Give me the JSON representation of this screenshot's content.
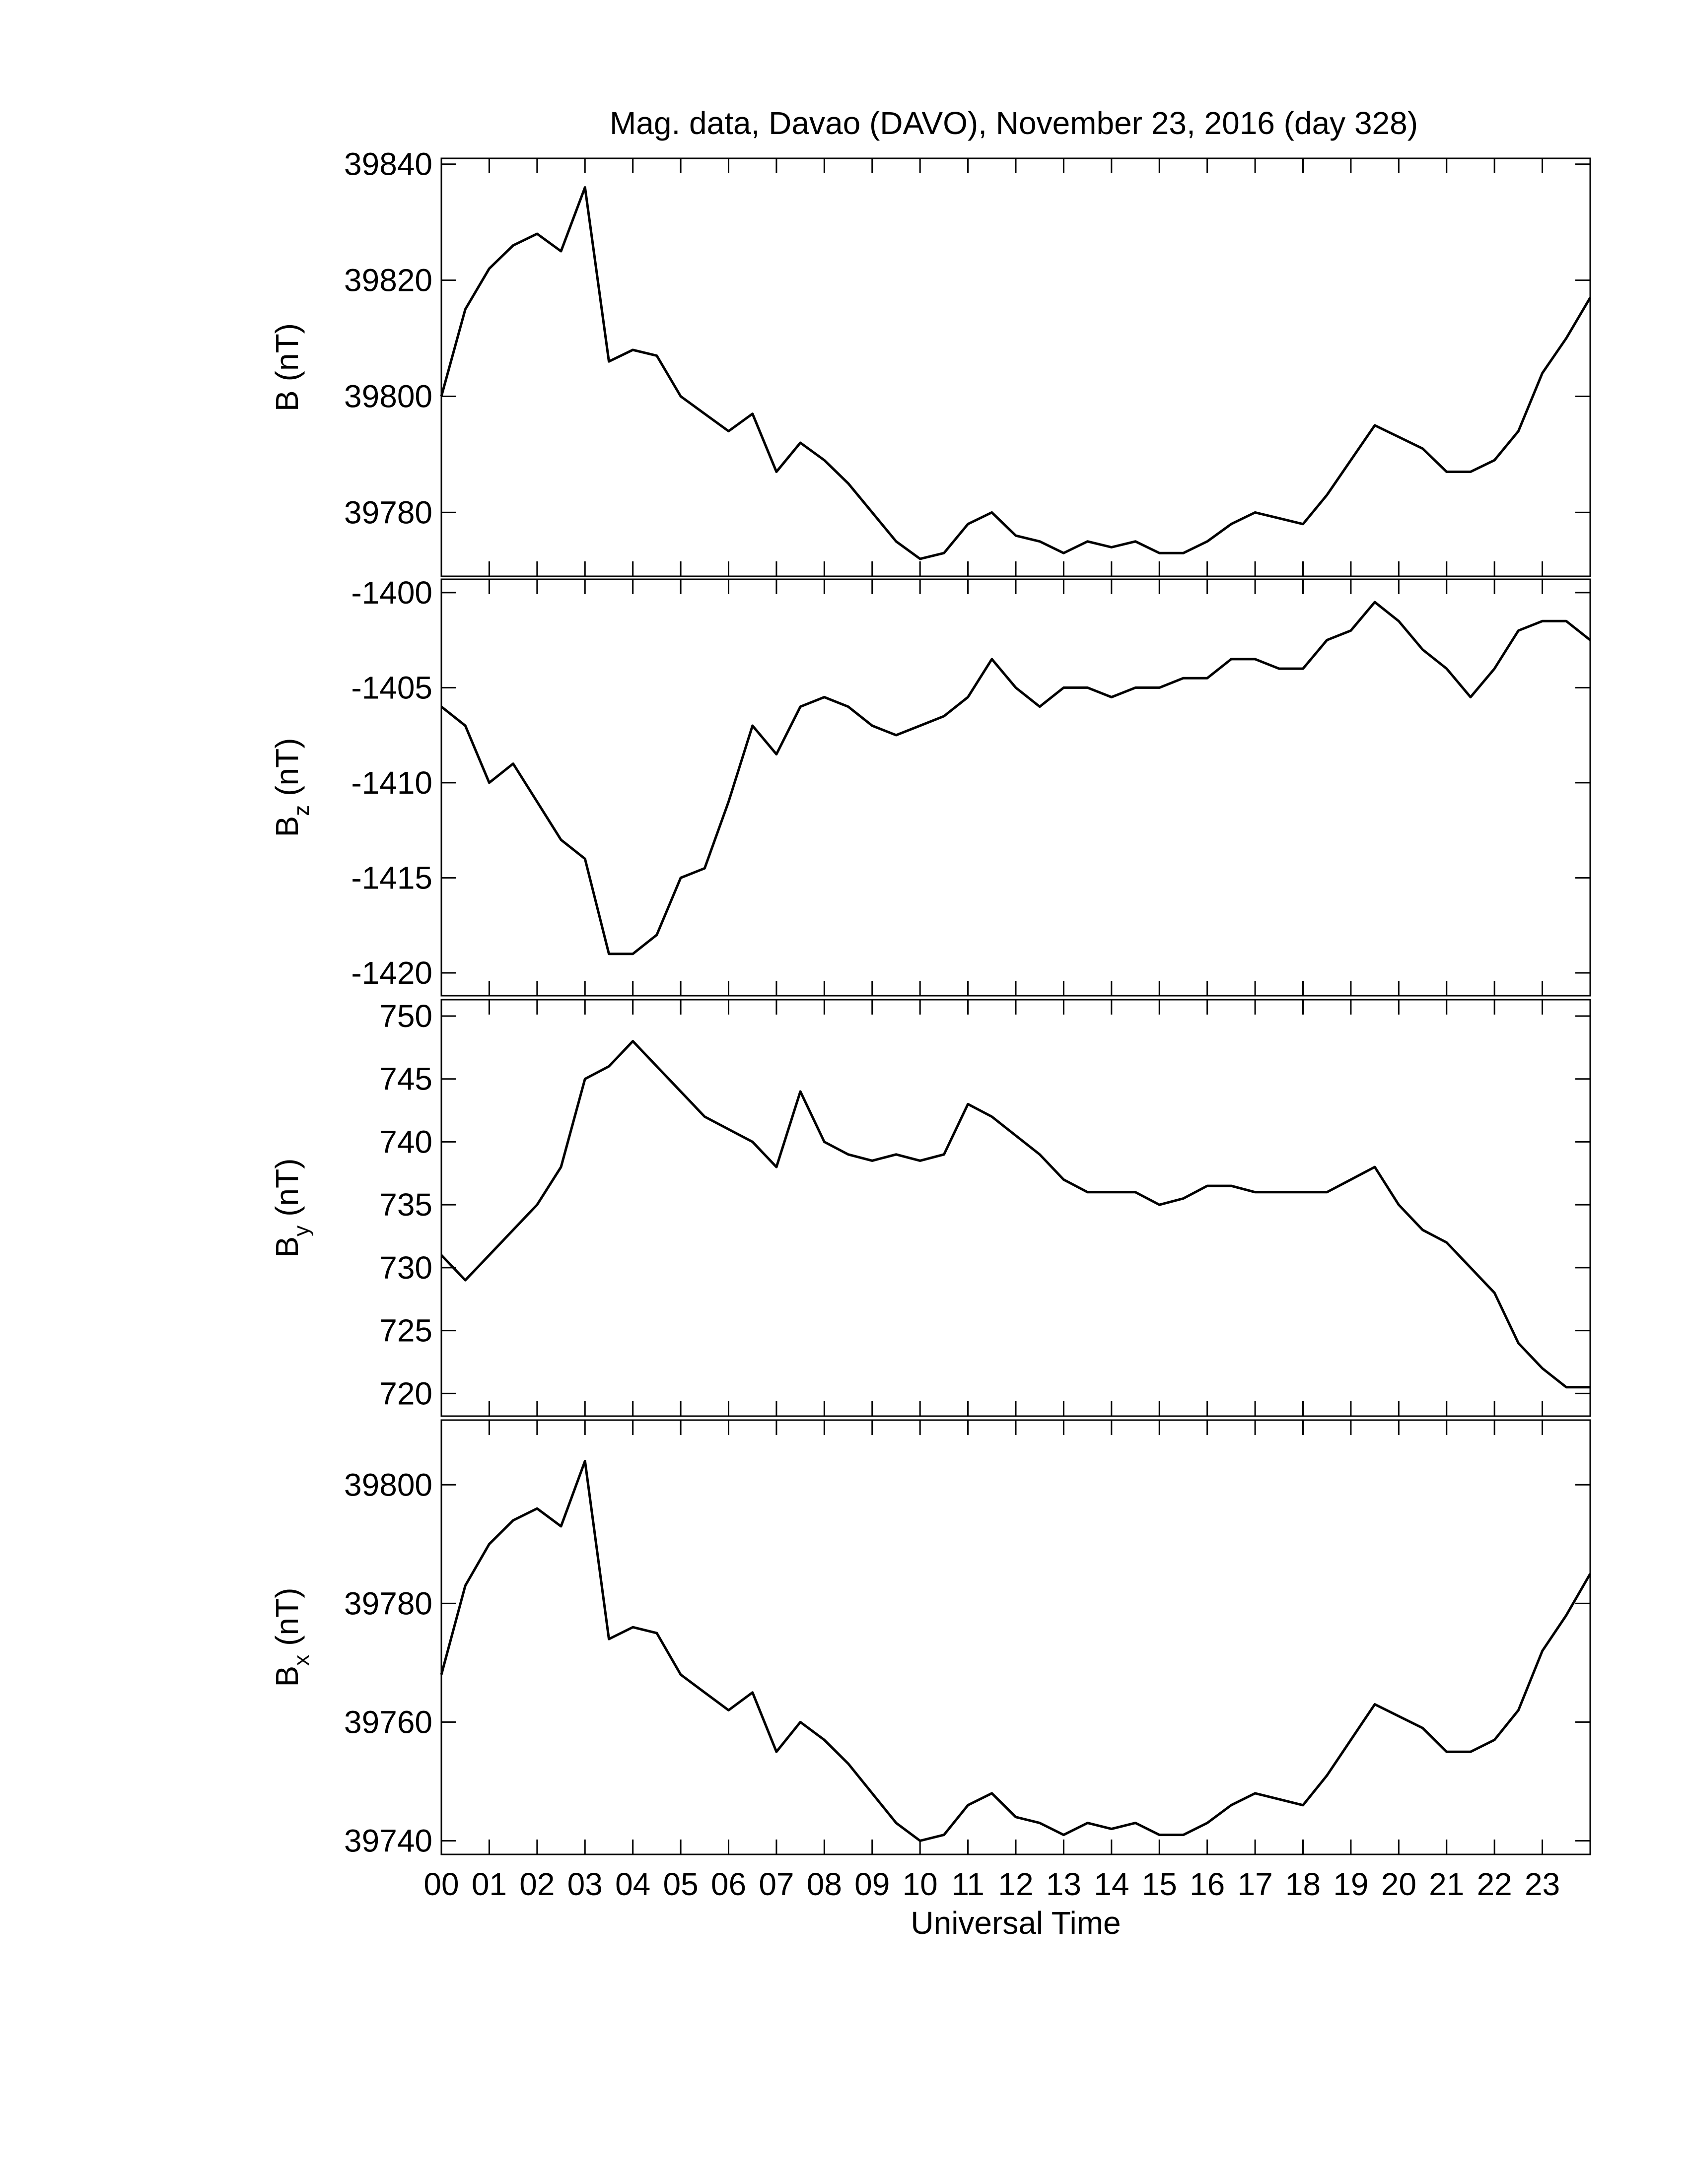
{
  "chart_data": [
    {
      "type": "line",
      "title": "Mag. data, Davao (DAVO), November 23, 2016 (day 328)",
      "ylabel": "B",
      "ylabel_unit": "(nT)",
      "color": "#000000",
      "xlim": [
        0,
        24
      ],
      "x": [
        0,
        0.5,
        1,
        1.5,
        2,
        2.5,
        3,
        3.5,
        4,
        4.5,
        5,
        5.5,
        6,
        6.5,
        7,
        7.5,
        8,
        8.5,
        9,
        9.5,
        10,
        10.5,
        11,
        11.5,
        12,
        12.5,
        13,
        13.5,
        14,
        14.5,
        15,
        15.5,
        16,
        16.5,
        17,
        17.5,
        18,
        18.5,
        19,
        19.5,
        20,
        20.5,
        21,
        21.5,
        22,
        22.5,
        23,
        23.5,
        24
      ],
      "values": [
        39800,
        39815,
        39822,
        39826,
        39828,
        39825,
        39836,
        39806,
        39808,
        39807,
        39800,
        39797,
        39794,
        39797,
        39787,
        39792,
        39789,
        39785,
        39780,
        39775,
        39772,
        39773,
        39778,
        39780,
        39776,
        39775,
        39773,
        39775,
        39774,
        39775,
        39773,
        39773,
        39775,
        39778,
        39780,
        39779,
        39778,
        39783,
        39789,
        39795,
        39793,
        39791,
        39787,
        39787,
        39789,
        39794,
        39804,
        39810,
        39817
      ],
      "ylim": [
        39769,
        39841
      ],
      "yticks": [
        39780,
        39800,
        39820,
        39840
      ]
    },
    {
      "type": "line",
      "ylabel": "B",
      "ylabel_sub": "z",
      "ylabel_unit": "(nT)",
      "color": "#000000",
      "xlim": [
        0,
        24
      ],
      "x": [
        0,
        0.5,
        1,
        1.5,
        2,
        2.5,
        3,
        3.5,
        4,
        4.5,
        5,
        5.5,
        6,
        6.5,
        7,
        7.5,
        8,
        8.5,
        9,
        9.5,
        10,
        10.5,
        11,
        11.5,
        12,
        12.5,
        13,
        13.5,
        14,
        14.5,
        15,
        15.5,
        16,
        16.5,
        17,
        17.5,
        18,
        18.5,
        19,
        19.5,
        20,
        20.5,
        21,
        21.5,
        22,
        22.5,
        23,
        23.5,
        24
      ],
      "values": [
        -1406,
        -1407,
        -1410,
        -1409,
        -1411,
        -1413,
        -1414,
        -1419,
        -1419,
        -1418,
        -1415,
        -1414.5,
        -1411,
        -1407,
        -1408.5,
        -1406,
        -1405.5,
        -1406,
        -1407,
        -1407.5,
        -1407,
        -1406.5,
        -1405.5,
        -1403.5,
        -1405,
        -1406,
        -1405,
        -1405,
        -1405.5,
        -1405,
        -1405,
        -1404.5,
        -1404.5,
        -1403.5,
        -1403.5,
        -1404,
        -1404,
        -1402.5,
        -1402,
        -1400.5,
        -1401.5,
        -1403,
        -1404,
        -1405.5,
        -1404,
        -1402,
        -1401.5,
        -1401.5,
        -1402.5
      ],
      "ylim": [
        -1421.2,
        -1399.3
      ],
      "yticks": [
        -1420,
        -1415,
        -1410,
        -1405,
        -1400
      ]
    },
    {
      "type": "line",
      "ylabel": "B",
      "ylabel_sub": "y",
      "ylabel_unit": "(nT)",
      "color": "#000000",
      "xlim": [
        0,
        24
      ],
      "x": [
        0,
        0.5,
        1,
        1.5,
        2,
        2.5,
        3,
        3.5,
        4,
        4.5,
        5,
        5.5,
        6,
        6.5,
        7,
        7.5,
        8,
        8.5,
        9,
        9.5,
        10,
        10.5,
        11,
        11.5,
        12,
        12.5,
        13,
        13.5,
        14,
        14.5,
        15,
        15.5,
        16,
        16.5,
        17,
        17.5,
        18,
        18.5,
        19,
        19.5,
        20,
        20.5,
        21,
        21.5,
        22,
        22.5,
        23,
        23.5,
        24
      ],
      "values": [
        731,
        729,
        731,
        733,
        735,
        738,
        745,
        746,
        748,
        746,
        744,
        742,
        741,
        740,
        738,
        744,
        740,
        739,
        738.5,
        739,
        738.5,
        739,
        743,
        742,
        740.5,
        739,
        737,
        736,
        736,
        736,
        735,
        735.5,
        736.5,
        736.5,
        736,
        736,
        736,
        736,
        737,
        738,
        735,
        733,
        732,
        730,
        728,
        724,
        722,
        720.5,
        720.5
      ],
      "ylim": [
        718.2,
        751.3
      ],
      "yticks": [
        720,
        725,
        730,
        735,
        740,
        745,
        750
      ]
    },
    {
      "type": "line",
      "ylabel": "B",
      "ylabel_sub": "x",
      "ylabel_unit": "(nT)",
      "color": "#000000",
      "xlabel": "Universal Time",
      "xlim": [
        0,
        24
      ],
      "x": [
        0,
        0.5,
        1,
        1.5,
        2,
        2.5,
        3,
        3.5,
        4,
        4.5,
        5,
        5.5,
        6,
        6.5,
        7,
        7.5,
        8,
        8.5,
        9,
        9.5,
        10,
        10.5,
        11,
        11.5,
        12,
        12.5,
        13,
        13.5,
        14,
        14.5,
        15,
        15.5,
        16,
        16.5,
        17,
        17.5,
        18,
        18.5,
        19,
        19.5,
        20,
        20.5,
        21,
        21.5,
        22,
        22.5,
        23,
        23.5,
        24
      ],
      "values": [
        39768,
        39783,
        39790,
        39794,
        39796,
        39793,
        39804,
        39774,
        39776,
        39775,
        39768,
        39765,
        39762,
        39765,
        39755,
        39760,
        39757,
        39753,
        39748,
        39743,
        39740,
        39741,
        39746,
        39748,
        39744,
        39743,
        39741,
        39743,
        39742,
        39743,
        39741,
        39741,
        39743,
        39746,
        39748,
        39747,
        39746,
        39751,
        39757,
        39763,
        39761,
        39759,
        39755,
        39755,
        39757,
        39762,
        39772,
        39778,
        39785
      ],
      "ylim": [
        39737.7,
        39810.9
      ],
      "yticks": [
        39740,
        39760,
        39780,
        39800
      ],
      "xticks": [
        {
          "value": 0,
          "label": "00"
        },
        {
          "value": 1,
          "label": "01"
        },
        {
          "value": 2,
          "label": "02"
        },
        {
          "value": 3,
          "label": "03"
        },
        {
          "value": 4,
          "label": "04"
        },
        {
          "value": 5,
          "label": "05"
        },
        {
          "value": 6,
          "label": "06"
        },
        {
          "value": 7,
          "label": "07"
        },
        {
          "value": 8,
          "label": "08"
        },
        {
          "value": 9,
          "label": "09"
        },
        {
          "value": 10,
          "label": "10"
        },
        {
          "value": 11,
          "label": "11"
        },
        {
          "value": 12,
          "label": "12"
        },
        {
          "value": 13,
          "label": "13"
        },
        {
          "value": 14,
          "label": "14"
        },
        {
          "value": 15,
          "label": "15"
        },
        {
          "value": 16,
          "label": "16"
        },
        {
          "value": 17,
          "label": "17"
        },
        {
          "value": 18,
          "label": "18"
        },
        {
          "value": 19,
          "label": "19"
        },
        {
          "value": 20,
          "label": "20"
        },
        {
          "value": 21,
          "label": "21"
        },
        {
          "value": 22,
          "label": "22"
        },
        {
          "value": 23,
          "label": "23"
        }
      ]
    }
  ]
}
